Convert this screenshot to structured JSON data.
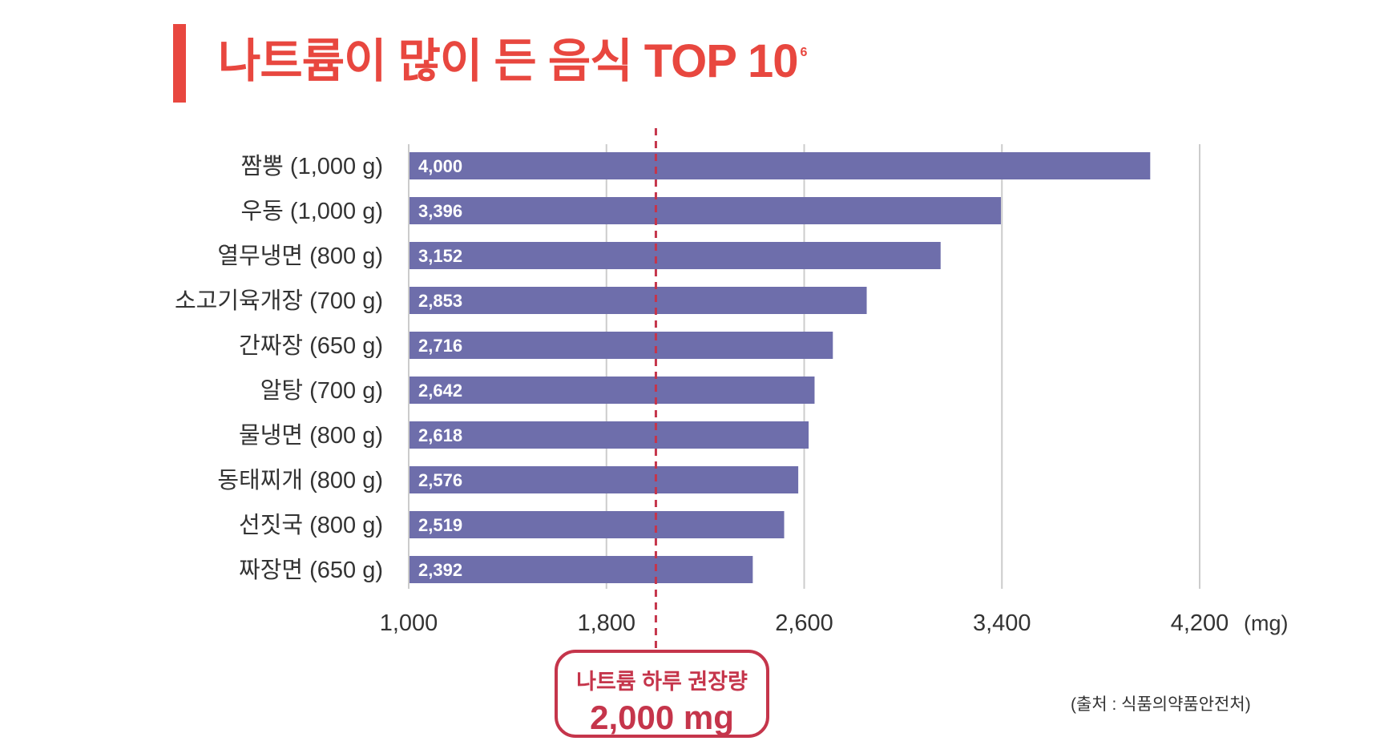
{
  "title": "나트륨이 많이 든 음식 TOP 10",
  "title_sup": "6",
  "chart_data": {
    "type": "bar",
    "orientation": "horizontal",
    "title": "나트륨이 많이 든 음식 TOP 10",
    "categories": [
      "짬뽕 (1,000 g)",
      "우동 (1,000 g)",
      "열무냉면 (800 g)",
      "소고기육개장 (700 g)",
      "간짜장 (650 g)",
      "알탕 (700 g)",
      "물냉면 (800 g)",
      "동태찌개 (800 g)",
      "선짓국 (800 g)",
      "짜장면 (650 g)"
    ],
    "values": [
      4000,
      3396,
      3152,
      2853,
      2716,
      2642,
      2618,
      2576,
      2519,
      2392
    ],
    "value_labels": [
      "4,000",
      "3,396",
      "3,152",
      "2,853",
      "2,716",
      "2,642",
      "2,618",
      "2,576",
      "2,519",
      "2,392"
    ],
    "xlim": [
      1000,
      4200
    ],
    "xticks": [
      1000,
      1800,
      2600,
      3400,
      4200
    ],
    "xtick_labels": [
      "1,000",
      "1,800",
      "2,600",
      "3,400",
      "4,200"
    ],
    "xunit": "(mg)",
    "reference_line": {
      "value": 2000,
      "label_line1": "나트륨 하루 권장량",
      "label_line2": "2,000 mg",
      "style": "dashed",
      "color": "#c5354b"
    },
    "bar_color": "#6e6eab",
    "grid": "vertical",
    "grid_color": "#cccccc"
  },
  "source": "(출처 : 식품의약품안전처)",
  "colors": {
    "accent": "#e8473f",
    "reference": "#c5354b",
    "bar": "#6e6eab"
  }
}
